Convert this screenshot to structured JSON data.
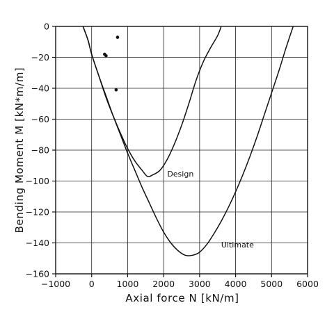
{
  "chart_data": {
    "type": "line",
    "xlabel": "Axial force  N  [kN/m]",
    "ylabel": "Bending  Moment  M  [kN*m/m]",
    "xlim": [
      -1000,
      6000
    ],
    "ylim": [
      -160,
      0
    ],
    "x_ticks": [
      "−1000",
      "0",
      "1000",
      "2000",
      "3000",
      "4000",
      "5000",
      "6000"
    ],
    "x_tick_values": [
      -1000,
      0,
      1000,
      2000,
      3000,
      4000,
      5000,
      6000
    ],
    "y_ticks": [
      "0",
      "−20",
      "−40",
      "−60",
      "−80",
      "−100",
      "−120",
      "−140",
      "−160"
    ],
    "y_tick_values": [
      0,
      -20,
      -40,
      -60,
      -80,
      -100,
      -120,
      -140,
      -160
    ],
    "grid": true,
    "series": [
      {
        "name": "Design",
        "x": [
          -240,
          -100,
          0,
          200,
          400,
          600,
          800,
          1000,
          1200,
          1400,
          1550,
          1700,
          1900,
          2100,
          2300,
          2500,
          2700,
          2900,
          3100,
          3300,
          3500,
          3600
        ],
        "y": [
          0,
          -9,
          -18,
          -32,
          -46,
          -58,
          -69,
          -79,
          -87,
          -93,
          -97,
          -96,
          -93,
          -86,
          -76,
          -64,
          -50,
          -35,
          -23,
          -14,
          -6,
          0
        ]
      },
      {
        "name": "Ultimate",
        "x": [
          -240,
          -100,
          0,
          200,
          400,
          600,
          800,
          1000,
          1200,
          1400,
          1600,
          1800,
          2000,
          2200,
          2400,
          2600,
          2800,
          3000,
          3200,
          3400,
          3600,
          3800,
          4000,
          4200,
          4400,
          4600,
          4800,
          5000,
          5200,
          5400,
          5600
        ],
        "y": [
          0,
          -9,
          -18,
          -32,
          -45,
          -58,
          -70,
          -82,
          -93,
          -104,
          -114,
          -124,
          -133,
          -140,
          -145,
          -148,
          -148,
          -146,
          -141,
          -134,
          -126,
          -117,
          -107,
          -96,
          -84,
          -71,
          -57,
          -43,
          -29,
          -14,
          0
        ]
      }
    ],
    "points": {
      "x": [
        360,
        400,
        680,
        720
      ],
      "y": [
        -18,
        -19,
        -41,
        -7
      ]
    },
    "annotations": [
      {
        "text": "Design",
        "x": 2100,
        "y": -97
      },
      {
        "text": "Ultimate",
        "x": 3600,
        "y": -143
      }
    ]
  }
}
